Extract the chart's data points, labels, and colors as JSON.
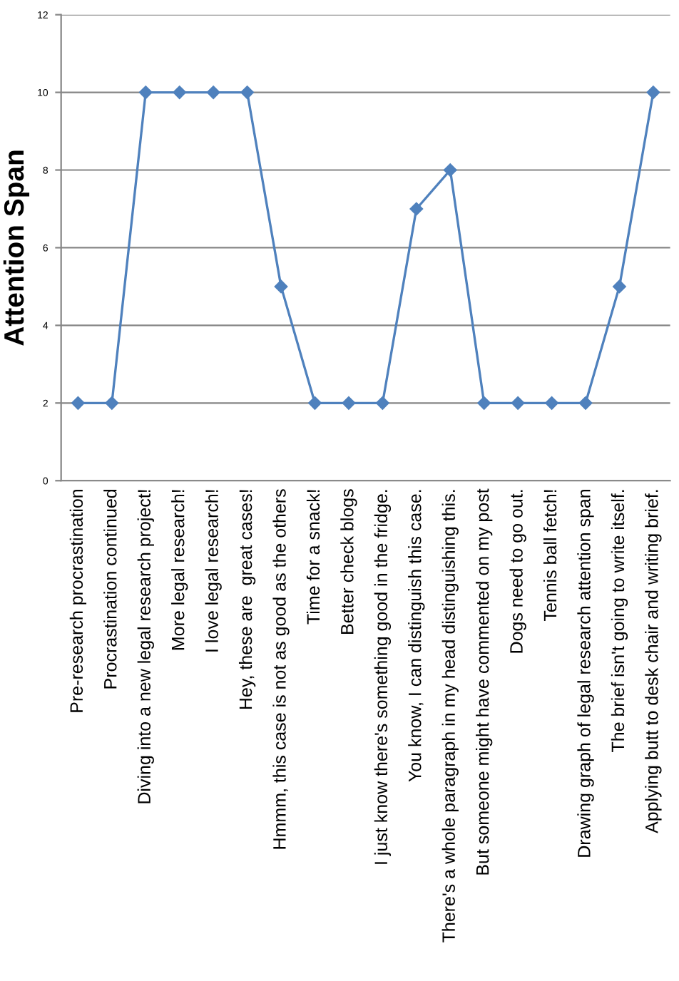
{
  "chart_data": {
    "type": "line",
    "ylabel": "Attention Span",
    "categories": [
      "Pre-research procrastination",
      "Procrastination continued",
      "Diving into a new legal research project!",
      "More legal research!",
      "I love legal research!",
      "Hey, these are  great cases!",
      "Hmmm, this case is not as good as the others",
      "Time for a snack!",
      "Better check blogs",
      "I just know there's something good in the fridge.",
      "You know, I can distinguish this case.",
      "There's a whole paragraph in my head distinguishing this.",
      "But someone might have commented on my post",
      "Dogs need to go out.",
      "Tennis ball fetch!",
      "Drawing graph of legal research attention span",
      "The brief isn't going to write itself.",
      "Applying butt to desk chair and writing brief."
    ],
    "series": [
      {
        "color": "#4f81bd",
        "values": [
          2,
          2,
          10,
          10,
          10,
          10,
          5,
          2,
          2,
          2,
          7,
          8,
          2,
          2,
          2,
          2,
          5,
          10
        ]
      }
    ],
    "ylim": [
      0,
      12
    ],
    "yticks": [
      0,
      2,
      4,
      6,
      8,
      10,
      12
    ],
    "grid": "y",
    "marker": "diamond",
    "line_style": "solid"
  }
}
